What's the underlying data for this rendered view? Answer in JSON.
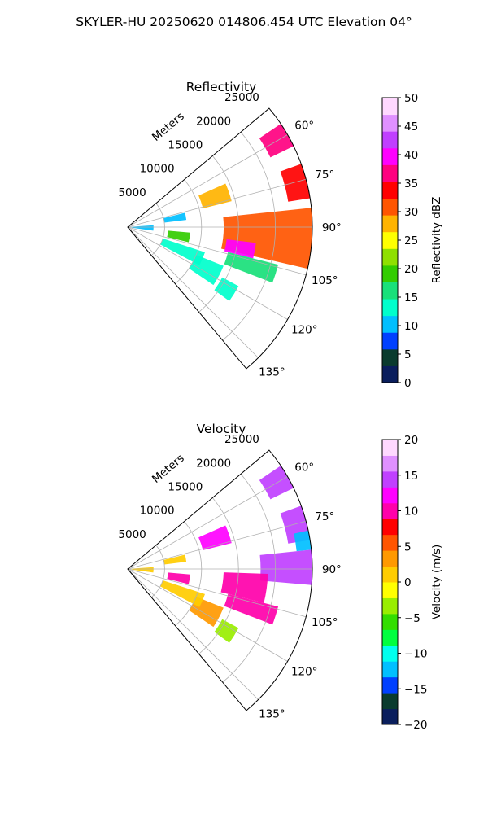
{
  "figure_title": "SKYLER-HU  20250620  014806.454 UTC Elevation 04°",
  "chart_data": [
    {
      "type": "heatmap",
      "projection": "polar-sector",
      "title": "Reflectivity",
      "radial_axis_label": "Meters",
      "radial_ticks": [
        "5000",
        "10000",
        "15000",
        "20000",
        "25000"
      ],
      "radial_tick_values": [
        5000,
        10000,
        15000,
        20000,
        25000
      ],
      "radial_max": 25000,
      "azimuth_range_deg": [
        50,
        140
      ],
      "azimuth_ticks": [
        "60°",
        "75°",
        "90°",
        "105°",
        "120°",
        "135°"
      ],
      "azimuth_tick_values": [
        60,
        75,
        90,
        105,
        120,
        135
      ],
      "grid": true,
      "colorbar": {
        "label": "Reflectivity dBZ",
        "range": [
          0,
          50
        ],
        "ticks": [
          "0",
          "5",
          "10",
          "15",
          "20",
          "25",
          "30",
          "35",
          "40",
          "45",
          "50"
        ],
        "tick_values": [
          0,
          5,
          10,
          15,
          20,
          25,
          30,
          35,
          40,
          45,
          50
        ],
        "colors": [
          "#0a1e5c",
          "#0a3b2e",
          "#0040ff",
          "#00bfff",
          "#00ffcc",
          "#19e07a",
          "#33cc00",
          "#8fe000",
          "#ffff00",
          "#ffb300",
          "#ff5500",
          "#ff0000",
          "#ff0080",
          "#ff00ff",
          "#c040ff",
          "#e090ff",
          "#ffd8ff"
        ]
      },
      "echoes": [
        {
          "az": [
            56,
            64
          ],
          "r": [
            21500,
            25000
          ],
          "value": 38
        },
        {
          "az": [
            66,
            76
          ],
          "r": [
            10500,
            14500
          ],
          "value": 27
        },
        {
          "az": [
            70,
            81
          ],
          "r": [
            22000,
            25000
          ],
          "value": 33
        },
        {
          "az": [
            84,
            103
          ],
          "r": [
            13000,
            25000
          ],
          "value": 30
        },
        {
          "az": [
            97,
            104
          ],
          "r": [
            13500,
            17500
          ],
          "value": 40
        },
        {
          "az": [
            104,
            111
          ],
          "r": [
            14000,
            21000
          ],
          "value": 16
        },
        {
          "az": [
            95,
            104
          ],
          "r": [
            5500,
            8500
          ],
          "value": 20
        },
        {
          "az": [
            112,
            124
          ],
          "r": [
            10000,
            14000
          ],
          "value": 14
        },
        {
          "az": [
            118,
            126
          ],
          "r": [
            14500,
            17000
          ],
          "value": 14
        },
        {
          "az": [
            76,
            83
          ],
          "r": [
            5000,
            8000
          ],
          "value": 11
        },
        {
          "az": [
            86,
            98
          ],
          "r": [
            500,
            3500
          ],
          "value": 10
        },
        {
          "az": [
            108,
            118
          ],
          "r": [
            5000,
            11000
          ],
          "value": 12
        }
      ]
    },
    {
      "type": "heatmap",
      "projection": "polar-sector",
      "title": "Velocity",
      "radial_axis_label": "Meters",
      "radial_ticks": [
        "5000",
        "10000",
        "15000",
        "20000",
        "25000"
      ],
      "radial_tick_values": [
        5000,
        10000,
        15000,
        20000,
        25000
      ],
      "radial_max": 25000,
      "azimuth_range_deg": [
        50,
        140
      ],
      "azimuth_ticks": [
        "60°",
        "75°",
        "90°",
        "105°",
        "120°",
        "135°"
      ],
      "azimuth_tick_values": [
        60,
        75,
        90,
        105,
        120,
        135
      ],
      "grid": true,
      "colorbar": {
        "label": "Velocity (m/s)",
        "range": [
          -20,
          20
        ],
        "ticks": [
          "−20",
          "−15",
          "−10",
          "−5",
          "0",
          "5",
          "10",
          "15",
          "20"
        ],
        "tick_values": [
          -20,
          -15,
          -10,
          -5,
          0,
          5,
          10,
          15,
          20
        ],
        "colors": [
          "#0a1e5c",
          "#0a3b2e",
          "#0040ff",
          "#00bfff",
          "#00ffee",
          "#00ff40",
          "#33dd00",
          "#99ee00",
          "#ffff00",
          "#ffcc00",
          "#ff9900",
          "#ff5500",
          "#ff0000",
          "#ff00aa",
          "#ff00ff",
          "#c040ff",
          "#e090ff",
          "#ffd8ff"
        ]
      },
      "echoes": [
        {
          "az": [
            56,
            64
          ],
          "r": [
            21500,
            25000
          ],
          "value": 15
        },
        {
          "az": [
            66,
            76
          ],
          "r": [
            10500,
            14500
          ],
          "value": 13
        },
        {
          "az": [
            70,
            81
          ],
          "r": [
            22000,
            25000
          ],
          "value": 14
        },
        {
          "az": [
            84,
            95
          ],
          "r": [
            18000,
            25000
          ],
          "value": 14
        },
        {
          "az": [
            92,
            104
          ],
          "r": [
            13000,
            19000
          ],
          "value": 10
        },
        {
          "az": [
            104,
            111
          ],
          "r": [
            14000,
            21000
          ],
          "value": 9
        },
        {
          "az": [
            95,
            104
          ],
          "r": [
            5500,
            8500
          ],
          "value": 10
        },
        {
          "az": [
            112,
            124
          ],
          "r": [
            10000,
            14000
          ],
          "value": 4
        },
        {
          "az": [
            118,
            126
          ],
          "r": [
            14500,
            17000
          ],
          "value": -3
        },
        {
          "az": [
            76,
            83
          ],
          "r": [
            5000,
            8000
          ],
          "value": 1
        },
        {
          "az": [
            86,
            98
          ],
          "r": [
            500,
            3500
          ],
          "value": 1
        },
        {
          "az": [
            108,
            118
          ],
          "r": [
            5000,
            11000
          ],
          "value": 2
        },
        {
          "az": [
            78,
            84
          ],
          "r": [
            23000,
            25000
          ],
          "value": -12
        }
      ]
    }
  ]
}
